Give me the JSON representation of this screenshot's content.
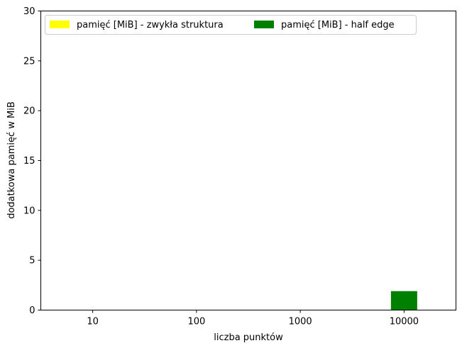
{
  "chart_data": {
    "type": "bar",
    "categories": [
      "10",
      "100",
      "1000",
      "10000"
    ],
    "series": [
      {
        "name": "pamięć [MiB] - zwykła struktura",
        "color": "#ffff00",
        "values": [
          0,
          0,
          0,
          0
        ]
      },
      {
        "name": "pamięć [MiB] - half edge",
        "color": "#008000",
        "values": [
          0,
          0,
          0,
          1.9
        ]
      }
    ],
    "xlabel": "liczba punktów",
    "ylabel": "dodatkowa pamięć w MiB",
    "ylim": [
      0,
      30
    ],
    "yticks": [
      0,
      5,
      10,
      15,
      20,
      25,
      30
    ],
    "legend": "top-left",
    "grid": false
  }
}
